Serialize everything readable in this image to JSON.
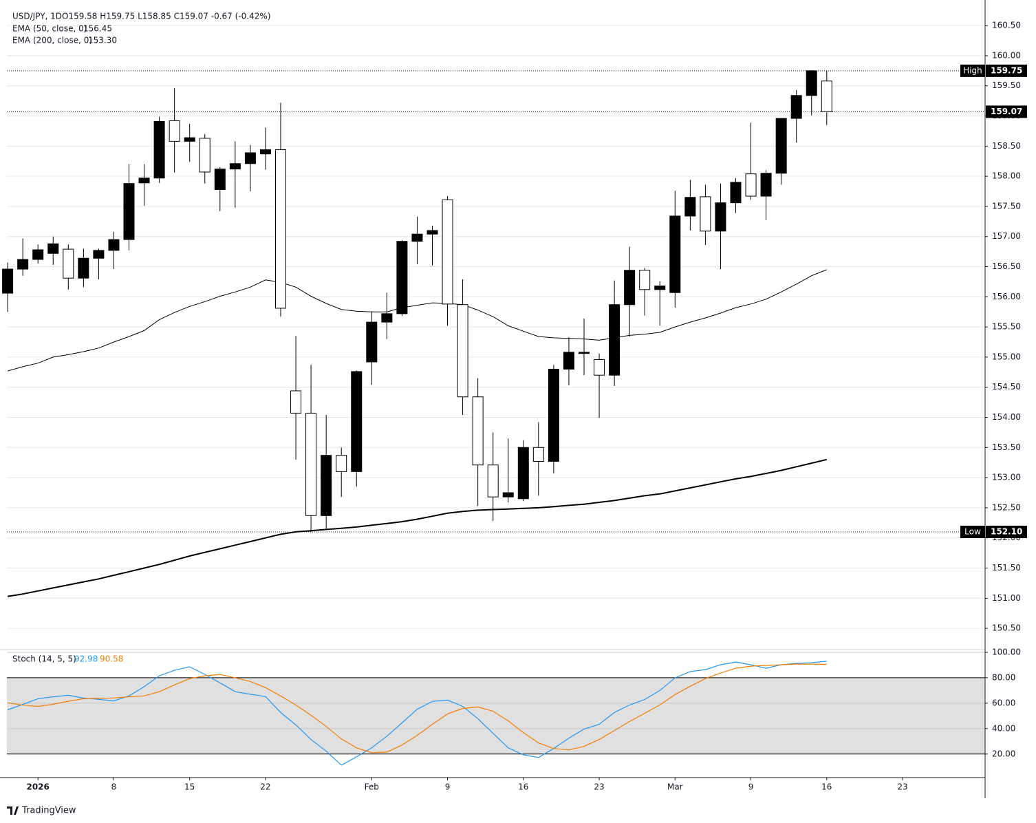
{
  "chart_data": [
    {
      "type": "candlestick",
      "title": "USD/JPY, 1D",
      "ohlc_label": "O159.58 H159.75 L158.85 C159.07 -0.67 (-0.42%)",
      "open": [
        156.06,
        156.46,
        156.62,
        156.72,
        156.79,
        156.31,
        156.64,
        156.77,
        156.95,
        157.89,
        157.97,
        158.92,
        158.58,
        158.63,
        157.78,
        158.12,
        158.21,
        158.37,
        158.44,
        154.44,
        154.07,
        152.37,
        153.37,
        153.1,
        154.92,
        155.58,
        155.72,
        156.92,
        157.04,
        157.61,
        155.87,
        154.34,
        153.21,
        152.68,
        152.65,
        153.5,
        153.27,
        154.8,
        155.06,
        154.96,
        154.7,
        155.87,
        156.44,
        156.12,
        156.07,
        157.34,
        157.66,
        157.09,
        157.56,
        158.04,
        157.67,
        158.05,
        158.96,
        159.34,
        159.58
      ],
      "high": [
        156.57,
        156.97,
        156.87,
        157.0,
        156.87,
        156.8,
        156.8,
        157.08,
        158.2,
        158.2,
        158.99,
        159.46,
        158.87,
        158.7,
        158.15,
        158.58,
        158.52,
        158.81,
        159.22,
        155.35,
        154.87,
        154.04,
        153.5,
        154.78,
        155.76,
        156.07,
        156.94,
        157.33,
        157.18,
        157.67,
        156.29,
        154.65,
        153.75,
        153.65,
        153.62,
        153.92,
        154.87,
        155.33,
        155.64,
        155.06,
        156.27,
        156.83,
        156.48,
        156.26,
        157.76,
        157.94,
        157.86,
        157.88,
        157.97,
        158.89,
        158.1,
        158.96,
        159.43,
        159.75,
        159.75
      ],
      "low": [
        155.75,
        156.35,
        156.55,
        156.53,
        156.12,
        156.16,
        156.29,
        156.46,
        156.77,
        157.51,
        157.89,
        158.06,
        158.24,
        157.88,
        157.42,
        157.48,
        157.75,
        158.11,
        155.67,
        153.3,
        152.1,
        152.16,
        152.68,
        152.85,
        154.54,
        155.3,
        155.68,
        156.54,
        156.52,
        155.52,
        154.04,
        152.53,
        152.28,
        152.59,
        152.61,
        152.7,
        153.07,
        154.53,
        154.7,
        153.99,
        154.52,
        155.34,
        155.69,
        155.52,
        155.82,
        157.1,
        156.86,
        156.46,
        157.39,
        157.61,
        157.27,
        157.86,
        158.56,
        159.01,
        158.85
      ],
      "close": [
        156.46,
        156.62,
        156.78,
        156.88,
        156.31,
        156.64,
        156.77,
        156.95,
        157.88,
        157.97,
        158.91,
        158.58,
        158.64,
        158.07,
        158.12,
        158.21,
        158.39,
        158.44,
        155.81,
        154.07,
        152.37,
        153.37,
        153.1,
        154.76,
        155.58,
        155.72,
        156.92,
        157.04,
        157.1,
        155.88,
        154.34,
        153.21,
        152.68,
        152.75,
        153.5,
        153.27,
        154.8,
        155.08,
        155.08,
        154.7,
        155.87,
        156.44,
        156.12,
        156.18,
        157.34,
        157.65,
        157.09,
        157.56,
        157.9,
        157.67,
        158.05,
        158.96,
        159.34,
        159.75,
        159.07
      ],
      "up_color": "#000000",
      "down_color": "#ffffff",
      "series": [
        {
          "name": "EMA (50, close, 0)",
          "color": "#000000",
          "values": [
            154.77,
            154.84,
            154.9,
            155.0,
            155.04,
            155.09,
            155.15,
            155.25,
            155.34,
            155.44,
            155.62,
            155.74,
            155.84,
            155.92,
            156.01,
            156.08,
            156.16,
            156.28,
            156.24,
            156.16,
            156.01,
            155.89,
            155.79,
            155.76,
            155.75,
            155.75,
            155.82,
            155.86,
            155.9,
            155.89,
            155.87,
            155.78,
            155.67,
            155.52,
            155.43,
            155.34,
            155.32,
            155.31,
            155.3,
            155.28,
            155.32,
            155.36,
            155.38,
            155.41,
            155.5,
            155.58,
            155.65,
            155.73,
            155.82,
            155.88,
            155.96,
            156.08,
            156.21,
            156.35,
            156.45
          ]
        },
        {
          "name": "EMA (200, close, 0)",
          "color": "#000000",
          "last_label": "153.30",
          "values": [
            151.03,
            151.07,
            151.12,
            151.17,
            151.22,
            151.27,
            151.32,
            151.38,
            151.44,
            151.5,
            151.56,
            151.63,
            151.7,
            151.76,
            151.82,
            151.88,
            151.94,
            152.0,
            152.06,
            152.1,
            152.12,
            152.14,
            152.16,
            152.18,
            152.21,
            152.24,
            152.27,
            152.31,
            152.36,
            152.41,
            152.44,
            152.46,
            152.47,
            152.48,
            152.49,
            152.5,
            152.52,
            152.54,
            152.56,
            152.59,
            152.62,
            152.66,
            152.7,
            152.73,
            152.78,
            152.83,
            152.88,
            152.93,
            152.98,
            153.02,
            153.07,
            153.12,
            153.18,
            153.24,
            153.3
          ]
        }
      ],
      "markers": [
        {
          "label": "High",
          "value": 159.75
        },
        {
          "label": "Low",
          "value": 152.1,
          "value_label": "152.10"
        },
        {
          "value": 159.07
        }
      ],
      "ylim": [
        150.17,
        160.81
      ],
      "yticks": [
        {
          "value": 150.5,
          "label": "150.50"
        },
        {
          "value": 151,
          "label": "151.00"
        },
        {
          "value": 151.5,
          "label": "151.50"
        },
        {
          "value": 152,
          "label": "152.00"
        },
        {
          "value": 152.5,
          "label": "152.50"
        },
        {
          "value": 153,
          "label": "153.00"
        },
        {
          "value": 153.5,
          "label": "153.50"
        },
        {
          "value": 154,
          "label": "154.00"
        },
        {
          "value": 154.5,
          "label": "154.50"
        },
        {
          "value": 155,
          "label": "155.00"
        },
        {
          "value": 155.5,
          "label": "155.50"
        },
        {
          "value": 156,
          "label": "156.00"
        },
        {
          "value": 156.5,
          "label": "156.50"
        },
        {
          "value": 157,
          "label": "157.00"
        },
        {
          "value": 157.5,
          "label": "157.50"
        },
        {
          "value": 158,
          "label": "158.00"
        },
        {
          "value": 158.5,
          "label": "158.50"
        },
        {
          "value": 159,
          "label": "159.00"
        },
        {
          "value": 159.5,
          "label": "159.50"
        },
        {
          "value": 160,
          "label": "160.00"
        },
        {
          "value": 160.5,
          "label": "160.50"
        }
      ],
      "xlim": [
        -0.05,
        64.44
      ],
      "xticks": [
        {
          "value": 2,
          "label": "2026"
        },
        {
          "value": 7,
          "label": "8"
        },
        {
          "value": 12,
          "label": "15"
        },
        {
          "value": 17,
          "label": "22"
        },
        {
          "value": 24,
          "label": "Feb"
        },
        {
          "value": 29,
          "label": "9"
        },
        {
          "value": 34,
          "label": "16"
        },
        {
          "value": 39,
          "label": "23"
        },
        {
          "value": 44,
          "label": "Mar"
        },
        {
          "value": 49,
          "label": "9"
        },
        {
          "value": 54,
          "label": "16"
        },
        {
          "value": 59,
          "label": "23"
        }
      ],
      "grid": true
    },
    {
      "type": "line",
      "title": "Stoch (14, 5, 5)",
      "series": [
        {
          "color": "#2196f3",
          "values": [
            54.8,
            59,
            63.5,
            65,
            66.2,
            64,
            63,
            61.8,
            65.7,
            73,
            81.5,
            85.9,
            88.6,
            82.6,
            76,
            69,
            67,
            65.2,
            52.7,
            42.9,
            31.4,
            22.2,
            11.3,
            17.8,
            24.9,
            34.1,
            44.5,
            55.3,
            61.4,
            62.4,
            57.5,
            47.8,
            36.3,
            24.9,
            19.4,
            17.3,
            24.4,
            32.5,
            39.6,
            43.4,
            52.7,
            58.6,
            62.9,
            70.0,
            79.9,
            84.8,
            86.4,
            90.2,
            92.4,
            90.2,
            87.5,
            90.2,
            91.3,
            91.8,
            92.98
          ]
        },
        {
          "color": "#f57c00",
          "values": [
            60.3,
            58.5,
            57.5,
            59.2,
            61.5,
            63.5,
            63.8,
            64.1,
            65,
            65.7,
            69.0,
            74.4,
            79.3,
            81.5,
            82.6,
            79.9,
            77.1,
            72.2,
            65.7,
            58.6,
            50.5,
            41.7,
            31.9,
            24.9,
            21.1,
            21.6,
            27.1,
            34.7,
            43.4,
            51.6,
            55.9,
            57.0,
            53.7,
            46.1,
            36.9,
            28.7,
            24.4,
            23.3,
            26.0,
            31.4,
            38.5,
            45.6,
            52.1,
            58.6,
            66.8,
            73.3,
            79.3,
            83.7,
            87.5,
            89.1,
            89.7,
            90.2,
            90.7,
            90.7,
            90.58
          ]
        }
      ],
      "band": [
        20,
        80
      ],
      "band_color": "#e0e0e0",
      "ylim": [
        1.5,
        101.6
      ],
      "yticks": [
        {
          "value": 20,
          "label": "20.00"
        },
        {
          "value": 40,
          "label": "40.00"
        },
        {
          "value": 60,
          "label": "60.00"
        },
        {
          "value": 80,
          "label": "80.00"
        },
        {
          "value": 100,
          "label": "100.00"
        }
      ]
    }
  ],
  "footer": "TradingView"
}
